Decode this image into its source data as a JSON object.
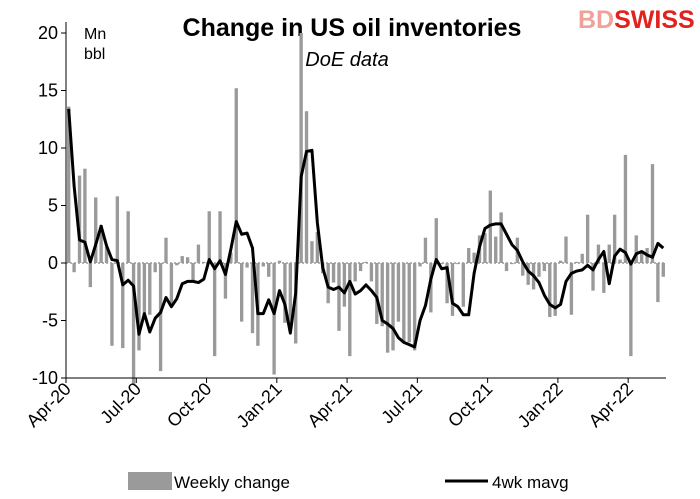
{
  "chart_data": {
    "type": "bar",
    "title": "Change in US oil inventories",
    "subtitle": "DoE data",
    "units": [
      "Mn",
      "bbl"
    ],
    "ylim": [
      -10,
      20
    ],
    "yticks": [
      -10,
      -5,
      0,
      5,
      10,
      15,
      20
    ],
    "xticks": [
      {
        "label": "Apr-20",
        "week": 0
      },
      {
        "label": "Jul-20",
        "week": 13
      },
      {
        "label": "Oct-20",
        "week": 26
      },
      {
        "label": "Jan-21",
        "week": 39
      },
      {
        "label": "Apr-21",
        "week": 52
      },
      {
        "label": "Jul-21",
        "week": 65
      },
      {
        "label": "Oct-21",
        "week": 78
      },
      {
        "label": "Jan-22",
        "week": 91
      },
      {
        "label": "Apr-22",
        "week": 104
      }
    ],
    "legend_position": "bottom",
    "grid": false,
    "series": [
      {
        "name": "Weekly change",
        "type": "bar",
        "color": "#9a9a9a",
        "values": [
          13.6,
          -0.8,
          7.6,
          8.2,
          -2.1,
          5.7,
          3.3,
          1.4,
          -7.2,
          5.8,
          -7.4,
          4.5,
          -10.6,
          -7.6,
          -4.6,
          -4.5,
          -0.8,
          -9.4,
          2.2,
          -3.7,
          -0.2,
          0.6,
          0.5,
          -1.6,
          1.6,
          0.1,
          4.5,
          -8.1,
          4.5,
          -3.1,
          0.9,
          15.2,
          -5.1,
          -0.4,
          -6.1,
          -7.2,
          -0.3,
          -1.2,
          -9.7,
          0.2,
          -5.2,
          -5.7,
          -7.0,
          20.0,
          13.2,
          1.9,
          2.7,
          -0.9,
          -3.5,
          -1.7,
          -5.9,
          -3.8,
          -8.1,
          -1.6,
          -0.7,
          0.1,
          -1.6,
          -5.3,
          -5.5,
          -7.8,
          -7.6,
          -5.1,
          -6.8,
          -6.9,
          -7.6,
          -0.3,
          2.2,
          -4.3,
          3.9,
          -0.1,
          -3.5,
          -4.6,
          -0.1,
          -3.8,
          1.3,
          0.9,
          2.4,
          2.6,
          6.3,
          2.3,
          4.4,
          -0.7,
          -0.1,
          2.2,
          -1.1,
          -1.9,
          -2.3,
          -1.2,
          -0.7,
          -4.7,
          -4.6,
          0.2,
          2.3,
          -4.5,
          0.1,
          0.8,
          4.2,
          -2.4,
          1.6,
          -2.6,
          1.6,
          4.2,
          0.3,
          9.4,
          -8.1,
          2.4,
          1.1,
          1.3,
          8.6,
          -3.4,
          -1.2
        ]
      },
      {
        "name": "4wk mavg",
        "type": "line",
        "color": "#000000",
        "values": [
          13.4,
          6.7,
          2.0,
          1.8,
          0.1,
          1.6,
          3.2,
          1.5,
          0.3,
          0.2,
          -1.9,
          -1.5,
          -2.0,
          -6.2,
          -4.4,
          -6.0,
          -4.8,
          -4.3,
          -3.0,
          -3.8,
          -3.1,
          -1.8,
          -1.6,
          -1.6,
          -1.7,
          -1.4,
          0.3,
          -0.5,
          0.2,
          -1.0,
          1.2,
          3.6,
          2.5,
          2.6,
          1.3,
          -4.4,
          -4.4,
          -3.2,
          -4.4,
          -2.4,
          -3.6,
          -6.1,
          -2.6,
          7.5,
          9.7,
          9.8,
          3.5,
          -0.4,
          -2.1,
          -2.3,
          -2.1,
          -2.6,
          -1.6,
          -2.7,
          -2.4,
          -1.9,
          -2.4,
          -3.0,
          -5.0,
          -5.3,
          -5.7,
          -6.5,
          -6.9,
          -7.1,
          -7.3,
          -5.0,
          -3.7,
          -1.4,
          0.3,
          -0.5,
          -0.4,
          -3.5,
          -3.8,
          -4.5,
          -4.5,
          -0.9,
          1.4,
          3.0,
          3.3,
          3.4,
          3.4,
          2.5,
          1.6,
          1.1,
          0.1,
          -0.7,
          -1.1,
          -1.7,
          -2.8,
          -3.6,
          -3.9,
          -3.6,
          -1.6,
          -0.9,
          -0.7,
          -0.6,
          -0.2,
          -0.6,
          0.3,
          1.0,
          -1.8,
          0.6,
          1.2,
          0.9,
          -0.1,
          0.8,
          1.0,
          0.7,
          0.5,
          1.7,
          1.3
        ]
      }
    ]
  },
  "brand": {
    "logo_text": "BDSWISS",
    "color_dark": "#e2221d",
    "color_light": "#f0a29a"
  }
}
